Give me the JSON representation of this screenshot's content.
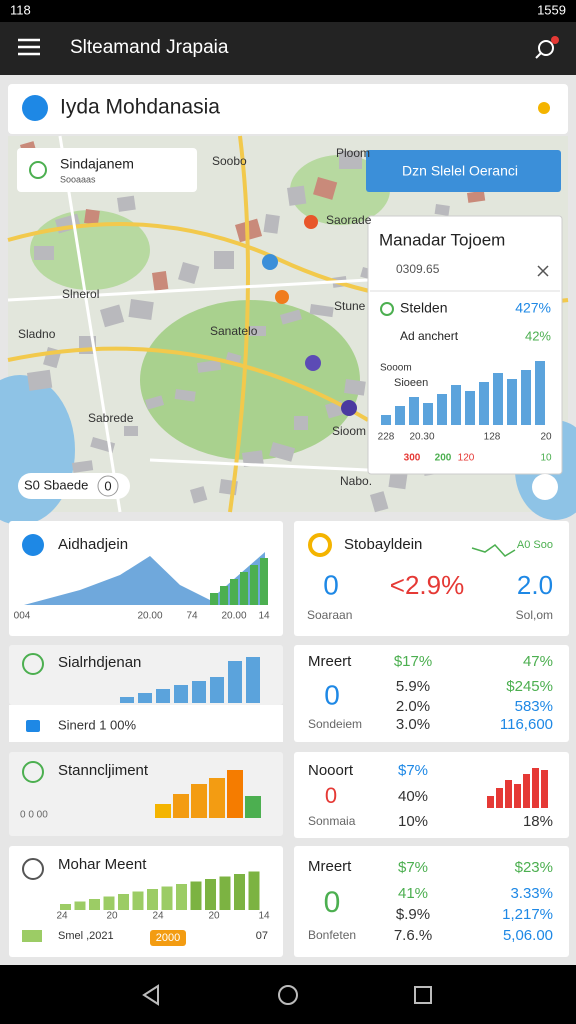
{
  "status_bar": {
    "time": "118",
    "clock": "1559"
  },
  "app_bar": {
    "title": "Slteamand Jrapaia"
  },
  "header": {
    "title": "Iyda Mohdanasia"
  },
  "map": {
    "popup": {
      "title": "Sindajanem",
      "subtitle": "Sooaaas"
    },
    "button": "Dzn Slelel Oeranci",
    "places": [
      "Ploom",
      "Soobo",
      "Slnerol",
      "Sladno",
      "Sabrede",
      "Stune",
      "Sanatelo",
      "Saorade",
      "Sioom",
      "Nabo."
    ],
    "search": "S0 Sbaede",
    "search_count": "0",
    "info": {
      "title": "Manadar Tojoem",
      "code": "0309.65",
      "rows": [
        {
          "label": "Stelden",
          "value": "427%"
        },
        {
          "label": "Ad anchert",
          "value": "42%"
        }
      ],
      "chart_title": "Sooom",
      "chart_subtitle": "Sioeen",
      "axis": [
        "228",
        "20.30",
        "128",
        "20"
      ],
      "footer": [
        "300",
        "200",
        "120",
        "10"
      ]
    }
  },
  "cards": [
    {
      "title": "Aidhadjein",
      "axis": [
        "004",
        "20.00",
        "74",
        "20.00",
        "14"
      ]
    },
    {
      "title": "Stobayldein",
      "tag": "A0 Soo",
      "big": "0",
      "value": "<2.9%",
      "right": "2.0",
      "left_foot": "Soaraan",
      "right_foot": "Sol,om"
    },
    {
      "title": "Sialrhdjenan",
      "strip": "Sinerd 1 00%"
    },
    {
      "title": "Mreert",
      "rows": [
        [
          "$17%",
          "47%"
        ],
        [
          "5.9%",
          "$245%"
        ],
        [
          "2.0%",
          "583%"
        ],
        [
          "3.0%",
          "116,600"
        ]
      ],
      "big": "0",
      "foot": "Sondeiem"
    },
    {
      "title": "Stanncljiment",
      "foot": "0 0 00"
    },
    {
      "title": "Nooort",
      "rows": [
        [
          "$7%"
        ],
        [
          "40%"
        ],
        [
          "10%",
          "18%"
        ]
      ],
      "big": "0",
      "foot": "Sonmaia"
    },
    {
      "title": "Mohar Meent",
      "axis": [
        "24",
        "20",
        "24",
        "20",
        "14"
      ],
      "foot": "Smel ,2021",
      "badge": "2000",
      "end": "07"
    },
    {
      "title": "Mreert",
      "rows": [
        [
          "$7%",
          "$23%"
        ],
        [
          "41%",
          "3.33%"
        ],
        [
          "$.9%",
          "1,217%"
        ],
        [
          "7.6.%",
          "5,06.00"
        ]
      ],
      "big": "0",
      "foot": "Bonfeten"
    }
  ]
}
